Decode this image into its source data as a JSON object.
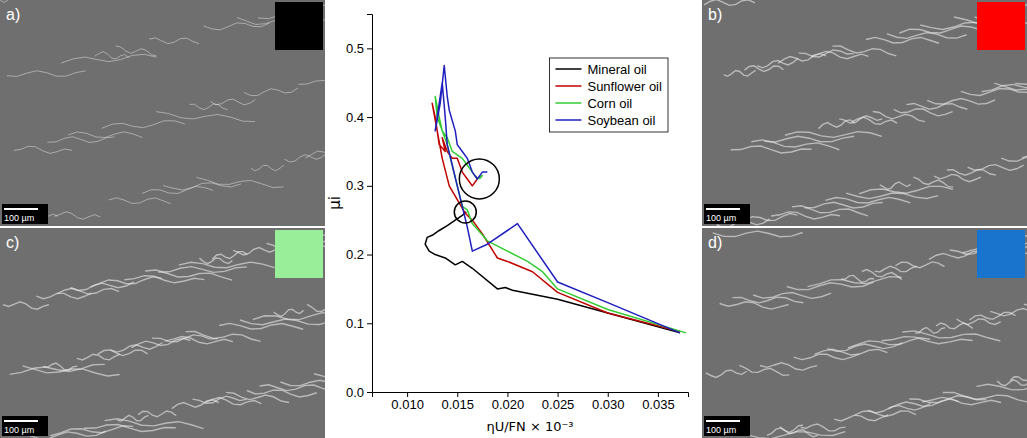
{
  "chart_data": {
    "type": "line",
    "x_label": "ηU/FN × 10⁻³",
    "y_label": "μi",
    "xlim": [
      0.0065,
      0.038
    ],
    "ylim": [
      0,
      0.55
    ],
    "xticks": [
      {
        "value": 0.01,
        "label": "0.010"
      },
      0.015,
      {
        "value": 0.02,
        "label": "0.020"
      },
      0.025,
      {
        "value": 0.03,
        "label": "0.030"
      },
      0.035
    ],
    "yticks": [
      {
        "value": 0,
        "label": "0.0"
      },
      0.1,
      0.2,
      0.3,
      0.4,
      0.5
    ],
    "grid": false,
    "legend": "upper right",
    "series": [
      {
        "name": "Mineral oil",
        "color": "#000000",
        "x": [
          0.0372,
          0.03,
          0.025,
          0.0205,
          0.0198,
          0.019,
          0.0165,
          0.0155,
          0.0148,
          0.0138,
          0.0128,
          0.0122,
          0.0118,
          0.012,
          0.0125,
          0.0132,
          0.014,
          0.0148,
          0.0155,
          0.0159
        ],
        "values": [
          0.086,
          0.115,
          0.135,
          0.148,
          0.152,
          0.15,
          0.18,
          0.19,
          0.185,
          0.195,
          0.2,
          0.205,
          0.215,
          0.225,
          0.228,
          0.235,
          0.242,
          0.25,
          0.257,
          0.262
        ]
      },
      {
        "name": "Sunflower oil",
        "color": "#c00000",
        "x": [
          0.0372,
          0.03,
          0.025,
          0.0225,
          0.02,
          0.019,
          0.0175,
          0.0165,
          0.0158,
          0.015,
          0.0142,
          0.0135,
          0.013,
          0.0125,
          0.0128,
          0.0132,
          0.0138,
          0.0135,
          0.014,
          0.0145,
          0.015,
          0.0155,
          0.016,
          0.0165,
          0.017,
          0.0168
        ],
        "values": [
          0.088,
          0.115,
          0.145,
          0.175,
          0.19,
          0.195,
          0.23,
          0.25,
          0.26,
          0.28,
          0.3,
          0.34,
          0.38,
          0.42,
          0.4,
          0.36,
          0.35,
          0.37,
          0.35,
          0.34,
          0.34,
          0.32,
          0.31,
          0.3,
          0.31,
          0.315
        ]
      },
      {
        "name": "Corn oil",
        "color": "#33cc33",
        "x": [
          0.0378,
          0.03,
          0.025,
          0.0235,
          0.022,
          0.02,
          0.018,
          0.0165,
          0.016,
          0.0155,
          0.015,
          0.0145,
          0.014,
          0.0135,
          0.013,
          0.0128,
          0.0132,
          0.0135,
          0.014,
          0.0145,
          0.015,
          0.0155,
          0.016,
          0.0165,
          0.017,
          0.0175,
          0.0172
        ],
        "values": [
          0.086,
          0.12,
          0.15,
          0.175,
          0.19,
          0.205,
          0.22,
          0.245,
          0.265,
          0.27,
          0.3,
          0.33,
          0.36,
          0.38,
          0.4,
          0.43,
          0.4,
          0.38,
          0.37,
          0.35,
          0.345,
          0.34,
          0.33,
          0.32,
          0.31,
          0.315,
          0.31
        ]
      },
      {
        "name": "Soybean oil",
        "color": "#1f1fbf",
        "x": [
          0.0372,
          0.03,
          0.025,
          0.021,
          0.018,
          0.0165,
          0.016,
          0.0155,
          0.015,
          0.0145,
          0.014,
          0.0138,
          0.0135,
          0.013,
          0.0128,
          0.0133,
          0.0137,
          0.014,
          0.0142,
          0.0148,
          0.015,
          0.0155,
          0.016,
          0.0165,
          0.017,
          0.0175,
          0.018
        ],
        "values": [
          0.086,
          0.13,
          0.16,
          0.245,
          0.215,
          0.205,
          0.24,
          0.27,
          0.3,
          0.33,
          0.36,
          0.4,
          0.45,
          0.4,
          0.38,
          0.42,
          0.475,
          0.43,
          0.41,
          0.38,
          0.36,
          0.35,
          0.34,
          0.32,
          0.31,
          0.32,
          0.32
        ]
      }
    ],
    "annotations": [
      {
        "x": 0.0172,
        "y": 0.31
      },
      {
        "x": 0.0158,
        "y": 0.262
      }
    ]
  },
  "images": [
    {
      "label": "a)",
      "color": "#000000",
      "scale_bar": "100 µm"
    },
    {
      "label": "b)",
      "color": "#ff0000",
      "scale_bar": "100 µm"
    },
    {
      "label": "c)",
      "color": "#99ee99",
      "scale_bar": "100 µm"
    },
    {
      "label": "d)",
      "color": "#1874cd",
      "scale_bar": "100 µm"
    }
  ]
}
